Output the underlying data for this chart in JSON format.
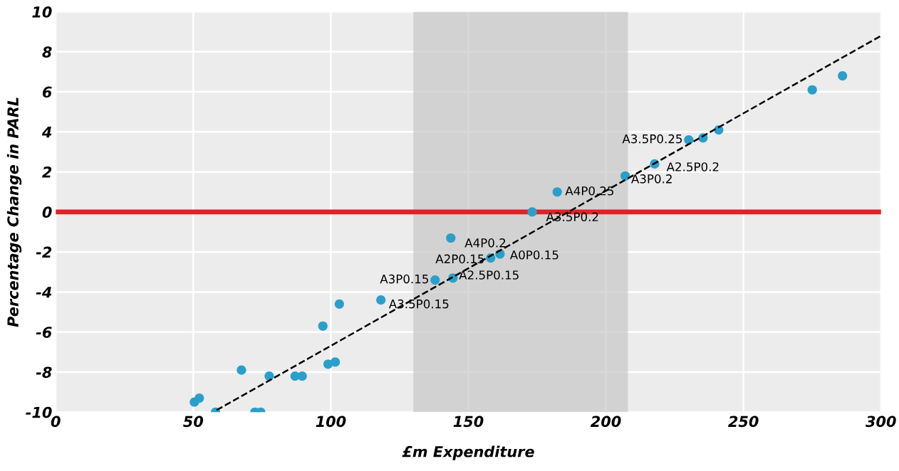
{
  "chart_data": {
    "type": "scatter",
    "xlabel": "£m Expenditure",
    "ylabel": "Percentage Change in PARL",
    "xlim": [
      0,
      300
    ],
    "xticks": [
      0,
      50,
      100,
      150,
      200,
      250,
      300
    ],
    "ylim": [
      -10,
      10
    ],
    "yticks": [
      -10,
      -8,
      -6,
      -4,
      -2,
      0,
      2,
      4,
      6,
      8,
      10
    ],
    "grid": true,
    "series": [
      {
        "color": "#2a9fc9",
        "marker": "circle",
        "x": [
          50.4,
          52.2,
          58.1,
          67.5,
          72.4,
          74.5,
          77.6,
          87.0,
          89.6,
          97.1,
          99.0,
          101.6,
          103.1,
          118.2,
          137.9,
          144.4,
          143.6,
          158.1,
          161.5,
          173.2,
          182.3,
          207.0,
          217.7,
          230.1,
          235.3,
          241.0,
          275.0,
          286.0
        ],
        "values": [
          -9.5,
          -9.3,
          -10.0,
          -7.9,
          -10.0,
          -10.0,
          -8.2,
          -8.2,
          -8.2,
          -5.7,
          -7.6,
          -7.5,
          -4.6,
          -4.4,
          -3.4,
          -3.3,
          -1.3,
          -2.3,
          -2.1,
          0.0,
          1.0,
          1.8,
          2.4,
          3.6,
          3.7,
          4.1,
          6.1,
          6.8
        ]
      },
      {
        "type": "line",
        "color": "#000000",
        "line_style": "dashed",
        "x": [
          58.5,
          300
        ],
        "values": [
          -9.9,
          8.8
        ]
      }
    ],
    "ref_lines": [
      {
        "axis": "y",
        "value": 0,
        "color": "#e02228"
      }
    ],
    "bands": [
      {
        "axis": "x",
        "from": 130,
        "to": 208,
        "color": "#c8c8c8"
      }
    ],
    "annotations": [
      {
        "text": "A3.5P0.15",
        "x": 118.2,
        "y": -4.4
      },
      {
        "text": "A3P0.15",
        "x": 137.9,
        "y": -3.4
      },
      {
        "text": "A2.5P0.15",
        "x": 144.4,
        "y": -3.3
      },
      {
        "text": "A4P0.2",
        "x": 143.6,
        "y": -1.3
      },
      {
        "text": "A2P0.15",
        "x": 158.1,
        "y": -2.3
      },
      {
        "text": "A0P0.15",
        "x": 161.5,
        "y": -2.1
      },
      {
        "text": "A3.5P0.2",
        "x": 173.2,
        "y": 0.0
      },
      {
        "text": "A4P0.25",
        "x": 182.3,
        "y": 1.0
      },
      {
        "text": "A3P0.2",
        "x": 207.0,
        "y": 1.8
      },
      {
        "text": "A2.5P0.2",
        "x": 217.7,
        "y": 2.4
      },
      {
        "text": "A3.5P0.25",
        "x": 230.1,
        "y": 3.6
      }
    ]
  }
}
